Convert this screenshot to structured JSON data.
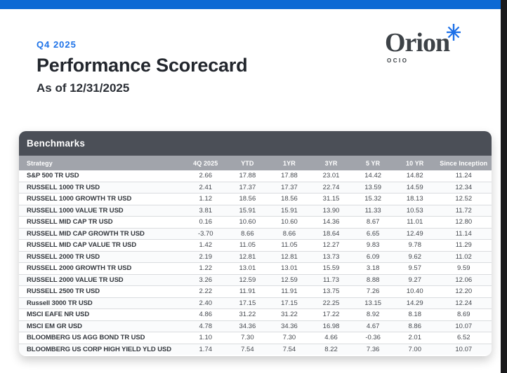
{
  "header": {
    "period": "Q4 2025",
    "title": "Performance Scorecard",
    "as_of": "As of 12/31/2025"
  },
  "logo": {
    "brand": "Orion",
    "subtitle": "OCIO",
    "asterisk_icon": "blue-asterisk",
    "asterisk_color": "#1b6fe8"
  },
  "colors": {
    "top_bar": "#0c69d4",
    "accent_blue": "#1d72e8",
    "title_text": "#22262d",
    "card_header_bg": "#4b4f57",
    "column_header_bg": "#a1a4ab",
    "row_border": "#dadcdf",
    "frame_right": "#1a1a1c"
  },
  "benchmarks": {
    "section_title": "Benchmarks",
    "columns": [
      "Strategy",
      "4Q 2025",
      "YTD",
      "1YR",
      "3YR",
      "5 YR",
      "10 YR",
      "Since Inception"
    ],
    "rows": [
      {
        "strategy": "S&P 500 TR USD",
        "values": [
          "2.66",
          "17.88",
          "17.88",
          "23.01",
          "14.42",
          "14.82",
          "11.24"
        ]
      },
      {
        "strategy": "RUSSELL 1000 TR USD",
        "values": [
          "2.41",
          "17.37",
          "17.37",
          "22.74",
          "13.59",
          "14.59",
          "12.34"
        ]
      },
      {
        "strategy": "RUSSELL 1000 GROWTH TR USD",
        "values": [
          "1.12",
          "18.56",
          "18.56",
          "31.15",
          "15.32",
          "18.13",
          "12.52"
        ]
      },
      {
        "strategy": "RUSSELL 1000 VALUE TR USD",
        "values": [
          "3.81",
          "15.91",
          "15.91",
          "13.90",
          "11.33",
          "10.53",
          "11.72"
        ]
      },
      {
        "strategy": "RUSSELL MID CAP TR USD",
        "values": [
          "0.16",
          "10.60",
          "10.60",
          "14.36",
          "8.67",
          "11.01",
          "12.80"
        ]
      },
      {
        "strategy": "RUSSELL MID CAP GROWTH TR USD",
        "values": [
          "-3.70",
          "8.66",
          "8.66",
          "18.64",
          "6.65",
          "12.49",
          "11.14"
        ]
      },
      {
        "strategy": "RUSSELL MID CAP VALUE TR USD",
        "values": [
          "1.42",
          "11.05",
          "11.05",
          "12.27",
          "9.83",
          "9.78",
          "11.29"
        ]
      },
      {
        "strategy": "RUSSELL 2000 TR USD",
        "values": [
          "2.19",
          "12.81",
          "12.81",
          "13.73",
          "6.09",
          "9.62",
          "11.02"
        ]
      },
      {
        "strategy": "RUSSELL 2000 GROWTH TR USD",
        "values": [
          "1.22",
          "13.01",
          "13.01",
          "15.59",
          "3.18",
          "9.57",
          "9.59"
        ]
      },
      {
        "strategy": "RUSSELL 2000 VALUE TR USD",
        "values": [
          "3.26",
          "12.59",
          "12.59",
          "11.73",
          "8.88",
          "9.27",
          "12.06"
        ]
      },
      {
        "strategy": "RUSSELL 2500 TR USD",
        "values": [
          "2.22",
          "11.91",
          "11.91",
          "13.75",
          "7.26",
          "10.40",
          "12.20"
        ]
      },
      {
        "strategy": "Russell 3000 TR USD",
        "values": [
          "2.40",
          "17.15",
          "17.15",
          "22.25",
          "13.15",
          "14.29",
          "12.24"
        ]
      },
      {
        "strategy": "MSCI EAFE NR USD",
        "values": [
          "4.86",
          "31.22",
          "31.22",
          "17.22",
          "8.92",
          "8.18",
          "8.69"
        ]
      },
      {
        "strategy": "MSCI EM GR USD",
        "values": [
          "4.78",
          "34.36",
          "34.36",
          "16.98",
          "4.67",
          "8.86",
          "10.07"
        ]
      },
      {
        "strategy": "BLOOMBERG US AGG BOND TR USD",
        "values": [
          "1.10",
          "7.30",
          "7.30",
          "4.66",
          "-0.36",
          "2.01",
          "6.52"
        ]
      },
      {
        "strategy": "BLOOMBERG US CORP HIGH YIELD YLD USD",
        "values": [
          "1.74",
          "7.54",
          "7.54",
          "8.22",
          "7.36",
          "7.00",
          "10.07"
        ]
      }
    ]
  }
}
